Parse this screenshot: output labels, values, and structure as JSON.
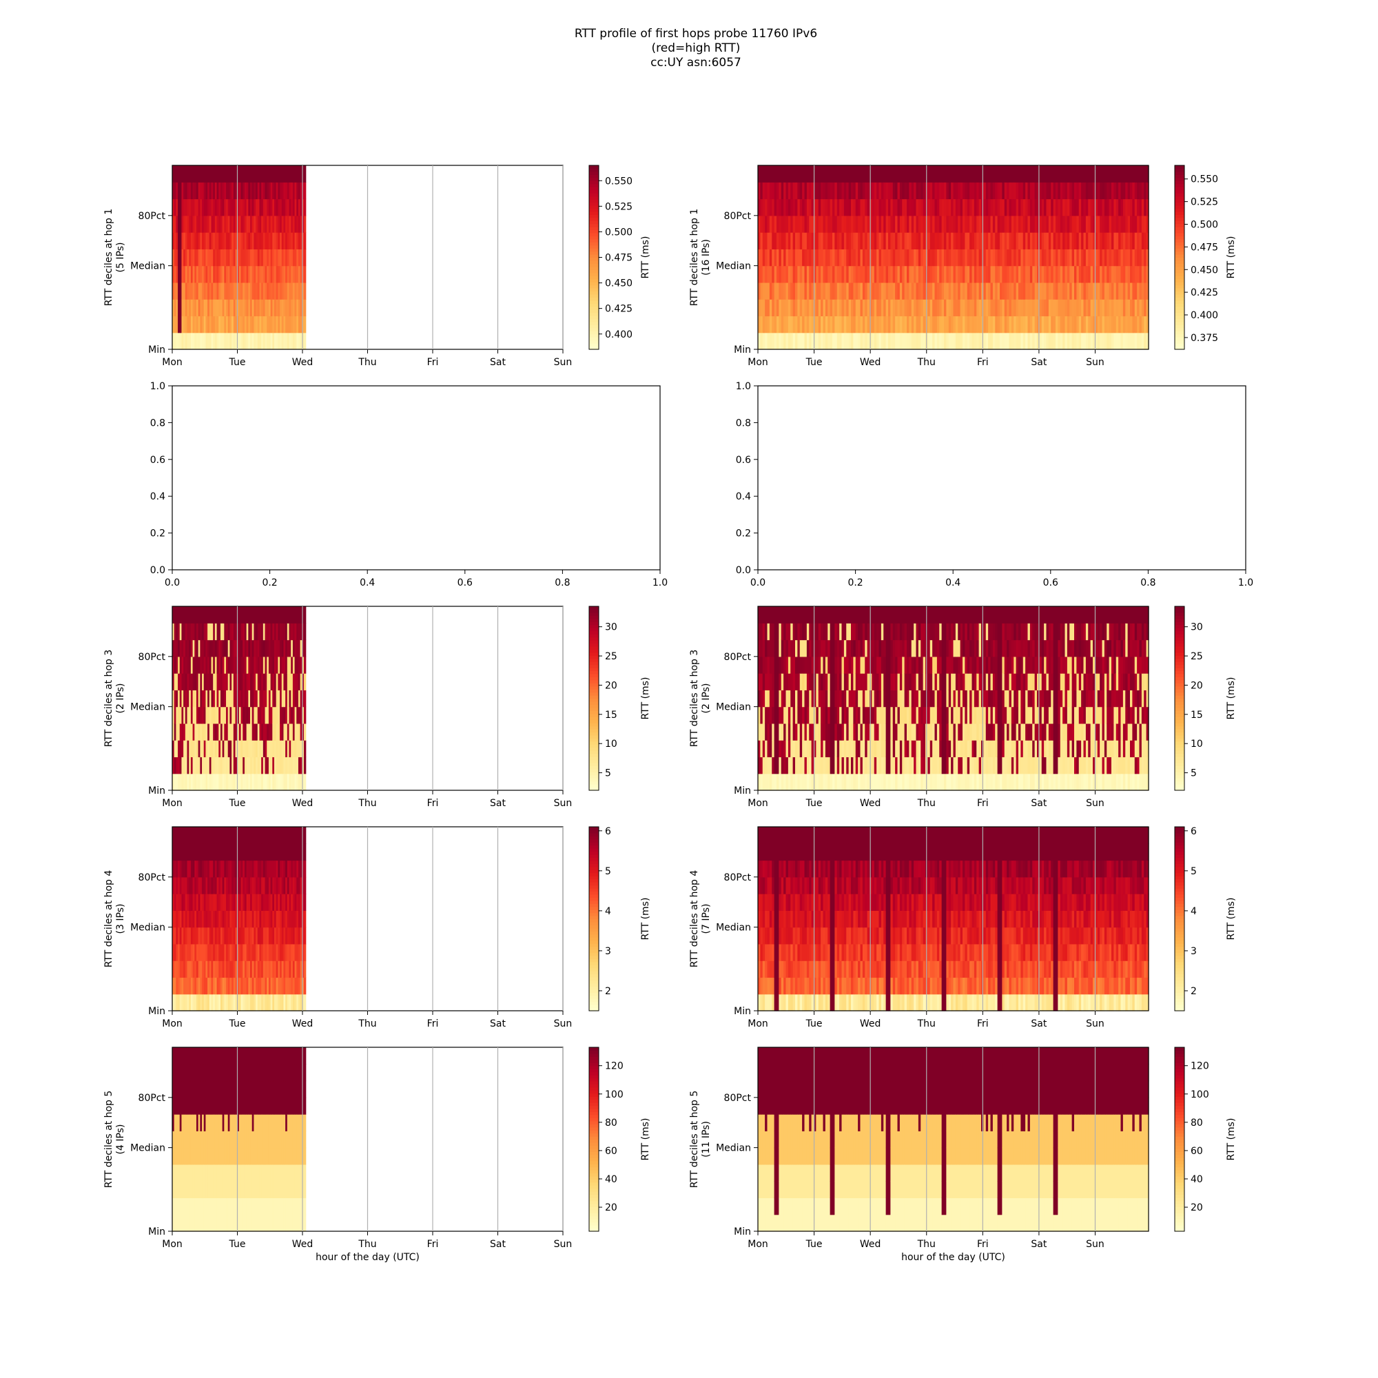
{
  "figure": {
    "title_lines": [
      "RTT profile of first hops probe 11760 IPv6",
      "(red=high RTT)",
      "cc:UY asn:6057"
    ],
    "colormap": [
      "#ffffcc",
      "#ffeda0",
      "#fed976",
      "#feb24c",
      "#fd8d3c",
      "#fc4e2a",
      "#e31a1c",
      "#bd0026",
      "#800026"
    ]
  },
  "chart_data": [
    {
      "type": "heatmap",
      "panel": "hop1-left",
      "ylabel_lines": [
        "RTT deciles at hop 1",
        "(5 IPs)"
      ],
      "xlabel": "",
      "x_ticks": [
        "Mon",
        "Tue",
        "Wed",
        "Thu",
        "Fri",
        "Sat",
        "Sun"
      ],
      "y_ticks": [
        "Min",
        "Median",
        "80Pct"
      ],
      "data_days": [
        0,
        2.05
      ],
      "colorbar": {
        "label": "RTT (ms)",
        "ticks": [
          "0.400",
          "0.425",
          "0.450",
          "0.475",
          "0.500",
          "0.525",
          "0.550"
        ],
        "range": [
          0.385,
          0.565
        ]
      },
      "cols": 72,
      "seed": 11,
      "profile": "hop1"
    },
    {
      "type": "heatmap",
      "panel": "hop1-right",
      "ylabel_lines": [
        "RTT deciles at hop 1",
        "(16 IPs)"
      ],
      "xlabel": "",
      "x_ticks": [
        "Mon",
        "Tue",
        "Wed",
        "Thu",
        "Fri",
        "Sat",
        "Sun"
      ],
      "y_ticks": [
        "Min",
        "Median",
        "80Pct"
      ],
      "data_days": [
        0,
        7
      ],
      "colorbar": {
        "label": "RTT (ms)",
        "ticks": [
          "0.375",
          "0.400",
          "0.425",
          "0.450",
          "0.475",
          "0.500",
          "0.525",
          "0.550"
        ],
        "range": [
          0.362,
          0.565
        ]
      },
      "cols": 168,
      "seed": 23,
      "profile": "hop1"
    },
    {
      "type": "empty",
      "panel": "hop2-left",
      "x_ticks": [
        "0.0",
        "0.2",
        "0.4",
        "0.6",
        "0.8",
        "1.0"
      ],
      "y_ticks": [
        "0.0",
        "0.2",
        "0.4",
        "0.6",
        "0.8",
        "1.0"
      ],
      "xlim": [
        0,
        1
      ],
      "ylim": [
        0,
        1
      ]
    },
    {
      "type": "empty",
      "panel": "hop2-right",
      "x_ticks": [
        "0.0",
        "0.2",
        "0.4",
        "0.6",
        "0.8",
        "1.0"
      ],
      "y_ticks": [
        "0.0",
        "0.2",
        "0.4",
        "0.6",
        "0.8",
        "1.0"
      ],
      "xlim": [
        0,
        1
      ],
      "ylim": [
        0,
        1
      ]
    },
    {
      "type": "heatmap",
      "panel": "hop3-left",
      "ylabel_lines": [
        "RTT deciles at hop 3",
        "(2 IPs)"
      ],
      "xlabel": "",
      "x_ticks": [
        "Mon",
        "Tue",
        "Wed",
        "Thu",
        "Fri",
        "Sat",
        "Sun"
      ],
      "y_ticks": [
        "Min",
        "Median",
        "80Pct"
      ],
      "data_days": [
        0,
        2.05
      ],
      "colorbar": {
        "label": "RTT (ms)",
        "ticks": [
          "5",
          "10",
          "15",
          "20",
          "25",
          "30"
        ],
        "range": [
          2,
          33.5
        ]
      },
      "cols": 72,
      "seed": 37,
      "profile": "hop3"
    },
    {
      "type": "heatmap",
      "panel": "hop3-right",
      "ylabel_lines": [
        "RTT deciles at hop 3",
        "(2 IPs)"
      ],
      "xlabel": "",
      "x_ticks": [
        "Mon",
        "Tue",
        "Wed",
        "Thu",
        "Fri",
        "Sat",
        "Sun"
      ],
      "y_ticks": [
        "Min",
        "Median",
        "80Pct"
      ],
      "data_days": [
        0,
        7
      ],
      "colorbar": {
        "label": "RTT (ms)",
        "ticks": [
          "5",
          "10",
          "15",
          "20",
          "25",
          "30"
        ],
        "range": [
          2,
          33.5
        ]
      },
      "cols": 168,
      "seed": 41,
      "profile": "hop3",
      "spikes": [
        0.3,
        1.3,
        2.3,
        3.3,
        4.3,
        5.3
      ]
    },
    {
      "type": "heatmap",
      "panel": "hop4-left",
      "ylabel_lines": [
        "RTT deciles at hop 4",
        "(3 IPs)"
      ],
      "xlabel": "",
      "x_ticks": [
        "Mon",
        "Tue",
        "Wed",
        "Thu",
        "Fri",
        "Sat",
        "Sun"
      ],
      "y_ticks": [
        "Min",
        "Median",
        "80Pct"
      ],
      "data_days": [
        0,
        2.05
      ],
      "colorbar": {
        "label": "RTT (ms)",
        "ticks": [
          "2",
          "3",
          "4",
          "5",
          "6"
        ],
        "range": [
          1.5,
          6.1
        ]
      },
      "cols": 72,
      "seed": 53,
      "profile": "hop4"
    },
    {
      "type": "heatmap",
      "panel": "hop4-right",
      "ylabel_lines": [
        "RTT deciles at hop 4",
        "(7 IPs)"
      ],
      "xlabel": "",
      "x_ticks": [
        "Mon",
        "Tue",
        "Wed",
        "Thu",
        "Fri",
        "Sat",
        "Sun"
      ],
      "y_ticks": [
        "Min",
        "Median",
        "80Pct"
      ],
      "data_days": [
        0,
        7
      ],
      "colorbar": {
        "label": "RTT (ms)",
        "ticks": [
          "2",
          "3",
          "4",
          "5",
          "6"
        ],
        "range": [
          1.5,
          6.1
        ]
      },
      "cols": 168,
      "seed": 67,
      "profile": "hop4",
      "spikes": [
        0.3,
        1.3,
        2.3,
        3.3,
        4.3,
        5.3
      ]
    },
    {
      "type": "heatmap",
      "panel": "hop5-left",
      "ylabel_lines": [
        "RTT deciles at hop 5",
        "(4 IPs)"
      ],
      "xlabel": "hour of the day (UTC)",
      "x_ticks": [
        "Mon",
        "Tue",
        "Wed",
        "Thu",
        "Fri",
        "Sat",
        "Sun"
      ],
      "y_ticks": [
        "Min",
        "Median",
        "80Pct"
      ],
      "data_days": [
        0,
        2.05
      ],
      "colorbar": {
        "label": "RTT (ms)",
        "ticks": [
          "20",
          "40",
          "60",
          "80",
          "100",
          "120"
        ],
        "range": [
          3,
          133
        ]
      },
      "cols": 72,
      "seed": 79,
      "profile": "hop5"
    },
    {
      "type": "heatmap",
      "panel": "hop5-right",
      "ylabel_lines": [
        "RTT deciles at hop 5",
        "(11 IPs)"
      ],
      "xlabel": "hour of the day (UTC)",
      "x_ticks": [
        "Mon",
        "Tue",
        "Wed",
        "Thu",
        "Fri",
        "Sat",
        "Sun"
      ],
      "y_ticks": [
        "Min",
        "Median",
        "80Pct"
      ],
      "data_days": [
        0,
        7
      ],
      "colorbar": {
        "label": "RTT (ms)",
        "ticks": [
          "20",
          "40",
          "60",
          "80",
          "100",
          "120"
        ],
        "range": [
          3,
          133
        ]
      },
      "cols": 168,
      "seed": 83,
      "profile": "hop5",
      "spikes": [
        0.3,
        1.3,
        2.3,
        3.3,
        4.3,
        5.3
      ]
    }
  ]
}
